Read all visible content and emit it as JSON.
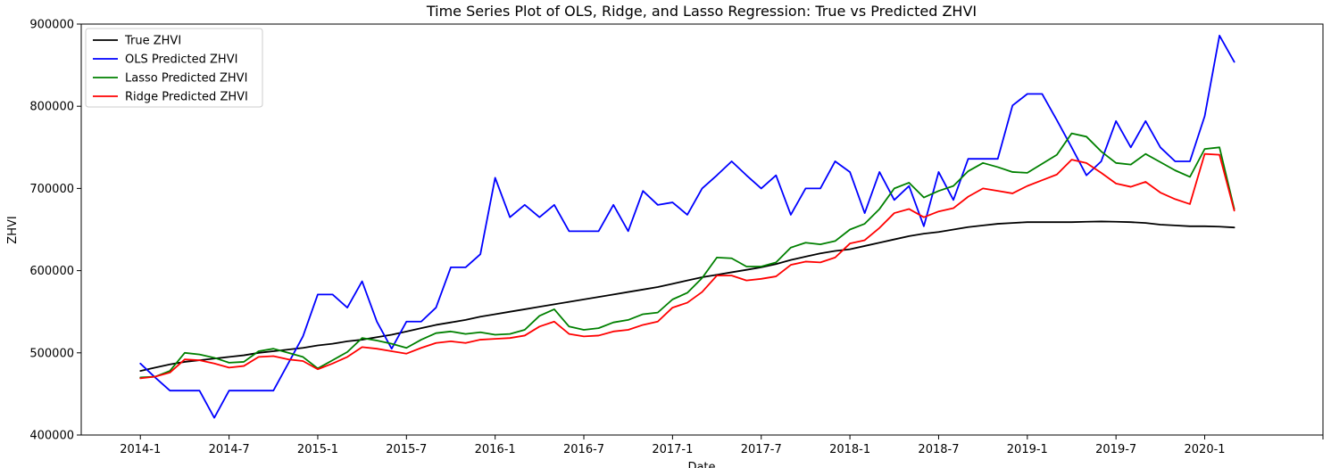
{
  "chart_data": {
    "type": "line",
    "title": "Time Series Plot of OLS, Ridge, and Lasso Regression: True vs Predicted ZHVI",
    "xlabel": "Date",
    "ylabel": "ZHVI",
    "ylim": [
      400000,
      900000
    ],
    "yticks": [
      400000,
      500000,
      600000,
      700000,
      800000,
      900000
    ],
    "ytick_labels": [
      "400000",
      "500000",
      "600000",
      "700000",
      "800000",
      "900000"
    ],
    "xlim": [
      "2013-09",
      "2020-09"
    ],
    "xticks": [
      "2014-01",
      "2014-07",
      "2015-01",
      "2015-07",
      "2016-01",
      "2016-07",
      "2017-01",
      "2017-07",
      "2018-01",
      "2018-07",
      "2019-01",
      "2019-07",
      "2020-01"
    ],
    "xtick_labels": [
      "2014-1",
      "2014-7",
      "2015-1",
      "2015-7",
      "2016-1",
      "2016-7",
      "2017-1",
      "2017-7",
      "2018-1",
      "2018-7",
      "2019-1",
      "2019-7",
      "2020-1"
    ],
    "legend_position": "top-left",
    "grid": false,
    "x": [
      "2014-01",
      "2014-02",
      "2014-03",
      "2014-04",
      "2014-05",
      "2014-06",
      "2014-07",
      "2014-08",
      "2014-09",
      "2014-10",
      "2014-11",
      "2014-12",
      "2015-01",
      "2015-02",
      "2015-03",
      "2015-04",
      "2015-05",
      "2015-06",
      "2015-07",
      "2015-08",
      "2015-09",
      "2015-10",
      "2015-11",
      "2015-12",
      "2016-01",
      "2016-02",
      "2016-03",
      "2016-04",
      "2016-05",
      "2016-06",
      "2016-07",
      "2016-08",
      "2016-09",
      "2016-10",
      "2016-11",
      "2016-12",
      "2017-01",
      "2017-02",
      "2017-03",
      "2017-04",
      "2017-05",
      "2017-06",
      "2017-07",
      "2017-08",
      "2017-09",
      "2017-10",
      "2017-11",
      "2017-12",
      "2018-01",
      "2018-02",
      "2018-03",
      "2018-04",
      "2018-05",
      "2018-06",
      "2018-07",
      "2018-08",
      "2018-09",
      "2018-10",
      "2018-11",
      "2018-12",
      "2019-01",
      "2019-02",
      "2019-03",
      "2019-04",
      "2019-05",
      "2019-06",
      "2019-07",
      "2019-08",
      "2019-09",
      "2019-10",
      "2019-11",
      "2019-12",
      "2020-01",
      "2020-02",
      "2020-03"
    ],
    "series": [
      {
        "name": "True ZHVI",
        "color": "#000000",
        "values": [
          478000,
          482000,
          486000,
          489000,
          491000,
          493000,
          495000,
          497000,
          500000,
          502000,
          504000,
          506000,
          509000,
          511000,
          514000,
          516000,
          519000,
          522000,
          526000,
          530000,
          534000,
          537000,
          540000,
          544000,
          547000,
          550000,
          553000,
          556000,
          559000,
          562000,
          565000,
          568000,
          571000,
          574000,
          577000,
          580000,
          584000,
          588000,
          592000,
          595000,
          598000,
          601000,
          604000,
          608000,
          613000,
          617000,
          621000,
          624000,
          626000,
          630000,
          634000,
          638000,
          642000,
          645000,
          647000,
          650000,
          653000,
          655000,
          657000,
          658000,
          659000,
          659000,
          659000,
          659000,
          659500,
          659800,
          659500,
          659000,
          658000,
          656000,
          655000,
          654000,
          654000,
          653500,
          652500
        ]
      },
      {
        "name": "OLS Predicted ZHVI",
        "color": "#0000ff",
        "values": [
          487000,
          470000,
          454000,
          454000,
          454000,
          421000,
          454000,
          454000,
          454000,
          454000,
          487000,
          520000,
          571000,
          571000,
          555000,
          587000,
          538000,
          505000,
          538000,
          538000,
          555000,
          604000,
          604000,
          620000,
          713000,
          665000,
          680000,
          665000,
          680000,
          648000,
          648000,
          648000,
          680000,
          648000,
          697000,
          680000,
          683000,
          668000,
          700000,
          716000,
          733000,
          716000,
          700000,
          716000,
          668000,
          700000,
          700000,
          733000,
          720000,
          670000,
          720000,
          686000,
          703000,
          654000,
          720000,
          686000,
          736000,
          736000,
          736000,
          801000,
          815000,
          815000,
          783000,
          750000,
          716000,
          733000,
          782000,
          750000,
          782000,
          750000,
          733000,
          733000,
          788000,
          886000,
          854000
        ]
      },
      {
        "name": "Lasso Predicted ZHVI",
        "color": "#008000",
        "values": [
          470000,
          471000,
          478000,
          500000,
          498000,
          494000,
          488000,
          489000,
          502000,
          505000,
          500000,
          495000,
          481000,
          491000,
          501000,
          518000,
          515000,
          511000,
          506000,
          516000,
          524000,
          526000,
          523000,
          525000,
          522000,
          523000,
          528000,
          545000,
          553000,
          532000,
          528000,
          530000,
          537000,
          540000,
          547000,
          549000,
          565000,
          573000,
          591000,
          616000,
          615000,
          605000,
          605000,
          610000,
          628000,
          634000,
          632000,
          636000,
          650000,
          657000,
          675000,
          700000,
          707000,
          689000,
          697000,
          703000,
          721000,
          731000,
          726000,
          720000,
          719000,
          730000,
          741000,
          767000,
          763000,
          745000,
          731000,
          729000,
          742000,
          732000,
          722000,
          714000,
          748000,
          750000,
          675000
        ]
      },
      {
        "name": "Ridge Predicted ZHVI",
        "color": "#ff0000",
        "values": [
          469000,
          471000,
          476000,
          492000,
          491000,
          487000,
          482000,
          484000,
          495000,
          496000,
          492000,
          490000,
          480000,
          487000,
          495000,
          507000,
          505000,
          502000,
          499000,
          506000,
          512000,
          514000,
          512000,
          516000,
          517000,
          518000,
          521000,
          532000,
          538000,
          523000,
          520000,
          521000,
          526000,
          528000,
          534000,
          538000,
          555000,
          561000,
          574000,
          594000,
          594000,
          588000,
          590000,
          593000,
          607000,
          611000,
          610000,
          616000,
          633000,
          637000,
          652000,
          670000,
          675000,
          665000,
          672000,
          676000,
          690000,
          700000,
          697000,
          694000,
          703000,
          710000,
          717000,
          735000,
          731000,
          719000,
          706000,
          702000,
          708000,
          695000,
          687000,
          681000,
          742000,
          741000,
          673000
        ]
      }
    ]
  }
}
